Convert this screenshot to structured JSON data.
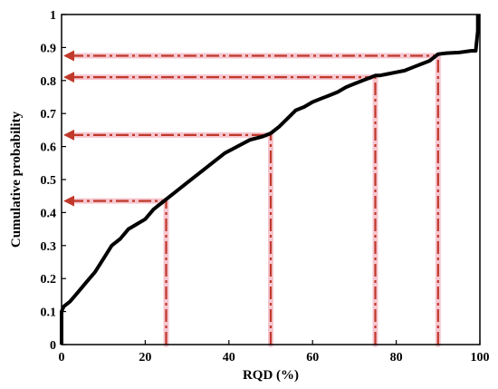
{
  "chart_data": {
    "type": "line",
    "xlabel": "RQD (%)",
    "ylabel": "Cumulative probability",
    "xlim": [
      0,
      100
    ],
    "ylim": [
      0,
      1
    ],
    "x_ticks": [
      0,
      20,
      40,
      60,
      80,
      100
    ],
    "y_ticks": [
      0,
      0.1,
      0.2,
      0.3,
      0.4,
      0.5,
      0.6,
      0.7,
      0.8,
      0.9,
      1
    ],
    "grid": false,
    "series": [
      {
        "color": "#000000",
        "x": [
          0,
          0,
          0.5,
          2,
          4,
          6,
          8,
          10,
          12,
          14,
          16,
          18,
          20,
          22,
          24,
          25,
          27,
          30,
          33,
          36,
          39,
          42,
          45,
          48,
          50,
          52,
          54,
          56,
          58,
          60,
          62,
          64,
          66,
          68,
          70,
          72,
          74,
          75,
          76,
          78,
          80,
          82,
          84,
          86,
          88,
          90,
          92,
          95,
          98,
          99,
          99.5,
          99.5
        ],
        "y": [
          0,
          0.1,
          0.115,
          0.13,
          0.16,
          0.19,
          0.22,
          0.26,
          0.3,
          0.32,
          0.35,
          0.365,
          0.38,
          0.41,
          0.43,
          0.44,
          0.46,
          0.49,
          0.52,
          0.55,
          0.58,
          0.6,
          0.62,
          0.63,
          0.64,
          0.66,
          0.685,
          0.71,
          0.72,
          0.735,
          0.745,
          0.755,
          0.765,
          0.78,
          0.79,
          0.8,
          0.81,
          0.815,
          0.815,
          0.82,
          0.825,
          0.83,
          0.84,
          0.85,
          0.86,
          0.88,
          0.883,
          0.885,
          0.89,
          0.89,
          0.95,
          1
        ]
      }
    ],
    "annotations": [
      {
        "x": 25,
        "y": 0.435,
        "color": "#c0392b"
      },
      {
        "x": 50,
        "y": 0.635,
        "color": "#c0392b"
      },
      {
        "x": 75,
        "y": 0.81,
        "color": "#c0392b"
      },
      {
        "x": 90,
        "y": 0.875,
        "color": "#c0392b"
      }
    ]
  }
}
